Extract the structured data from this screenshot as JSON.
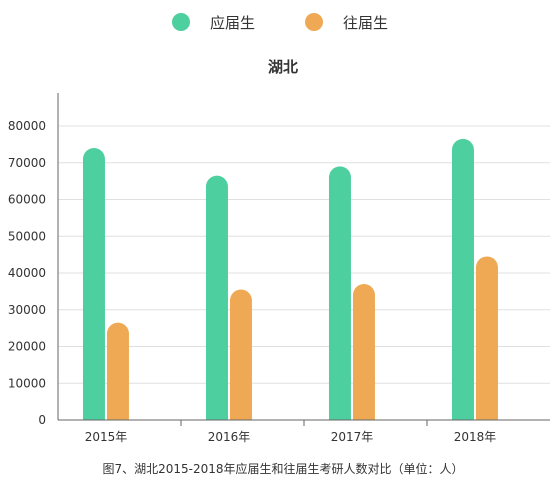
{
  "chart_data": {
    "type": "bar",
    "title": "湖北",
    "caption": "图7、湖北2015-2018年应届生和往届生考研人数对比（单位：人）",
    "categories": [
      "2015年",
      "2016年",
      "2017年",
      "2018年"
    ],
    "series": [
      {
        "name": "应届生",
        "color": "#4ecfa0",
        "values": [
          74000,
          66500,
          69000,
          76500
        ]
      },
      {
        "name": "往届生",
        "color": "#efa955",
        "values": [
          26500,
          35500,
          37000,
          44500
        ]
      }
    ],
    "ylim": [
      0,
      80000
    ],
    "yticks": [
      "0",
      "10000",
      "20000",
      "30000",
      "40000",
      "50000",
      "60000",
      "70000",
      "80000"
    ],
    "grid": true,
    "legend_position": "top-center",
    "bar_style": "rounded-top"
  }
}
